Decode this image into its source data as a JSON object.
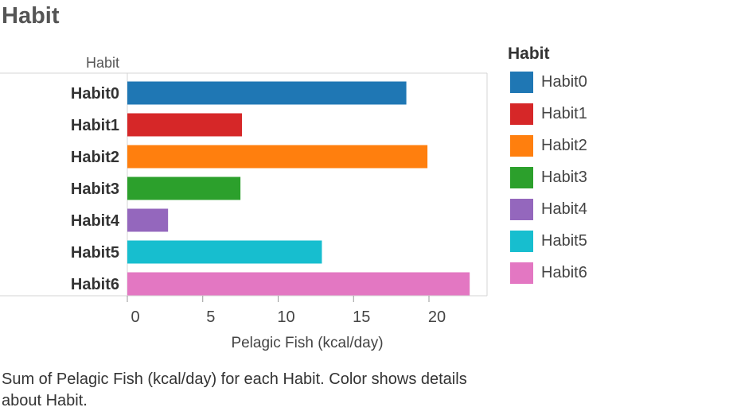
{
  "chart_data": {
    "type": "bar",
    "orientation": "horizontal",
    "title": "Habit",
    "row_header": "Habit",
    "xlabel": "Pelagic Fish (kcal/day)",
    "categories": [
      "Habit0",
      "Habit1",
      "Habit2",
      "Habit3",
      "Habit4",
      "Habit5",
      "Habit6"
    ],
    "values": [
      18.5,
      7.6,
      19.9,
      7.5,
      2.7,
      12.9,
      22.7
    ],
    "colors": [
      "#1f77b4",
      "#d62728",
      "#ff7f0e",
      "#2ca02c",
      "#9467bd",
      "#17becf",
      "#e377c2"
    ],
    "xlim": [
      0,
      23.7
    ],
    "xticks": [
      0,
      5,
      10,
      15,
      20
    ],
    "grid": false,
    "legend": {
      "title": "Habit",
      "placement": "right",
      "items": [
        "Habit0",
        "Habit1",
        "Habit2",
        "Habit3",
        "Habit4",
        "Habit5",
        "Habit6"
      ]
    }
  },
  "caption": "Sum of Pelagic Fish (kcal/day) for each Habit.  Color shows details about Habit."
}
